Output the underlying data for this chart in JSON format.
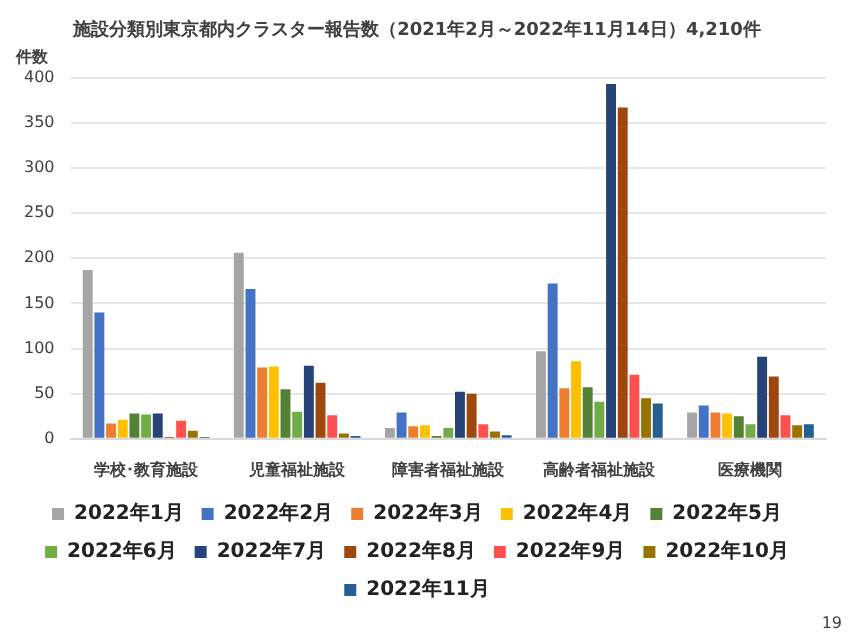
{
  "chart_data": {
    "type": "bar",
    "title": "施設分類別東京都内クラスター報告数（2021年2月～2022年11月14日）4,210件",
    "ylabel": "件数",
    "categories": [
      "学校･教育施設",
      "児童福祉施設",
      "障害者福祉施設",
      "高齢者福祉施設",
      "医療機関"
    ],
    "series": [
      {
        "name": "2022年1月",
        "color": "#a5a5a5",
        "values": [
          187,
          206,
          12,
          97,
          29
        ]
      },
      {
        "name": "2022年2月",
        "color": "#4472c4",
        "values": [
          140,
          166,
          29,
          172,
          37
        ]
      },
      {
        "name": "2022年3月",
        "color": "#ed7d31",
        "values": [
          17,
          79,
          14,
          56,
          29
        ]
      },
      {
        "name": "2022年4月",
        "color": "#ffc000",
        "values": [
          21,
          80,
          15,
          86,
          28
        ]
      },
      {
        "name": "2022年5月",
        "color": "#548235",
        "values": [
          28,
          55,
          3,
          57,
          25
        ]
      },
      {
        "name": "2022年6月",
        "color": "#70ad47",
        "values": [
          27,
          30,
          12,
          41,
          16
        ]
      },
      {
        "name": "2022年7月",
        "color": "#264478",
        "values": [
          28,
          81,
          52,
          393,
          91
        ]
      },
      {
        "name": "2022年8月",
        "color": "#9e480e",
        "values": [
          2,
          62,
          50,
          367,
          69
        ]
      },
      {
        "name": "2022年9月",
        "color": "#ff5050",
        "values": [
          20,
          26,
          16,
          71,
          26
        ]
      },
      {
        "name": "2022年10月",
        "color": "#997300",
        "values": [
          9,
          6,
          8,
          45,
          15
        ]
      },
      {
        "name": "2022年11月",
        "color": "#255e91",
        "values": [
          2,
          3,
          4,
          39,
          16
        ]
      }
    ],
    "ylim": [
      0,
      400
    ],
    "yticks": [
      0,
      50,
      100,
      150,
      200,
      250,
      300,
      350,
      400
    ],
    "grid": "y",
    "legend": "bottom",
    "annotations": [
      "19"
    ]
  }
}
